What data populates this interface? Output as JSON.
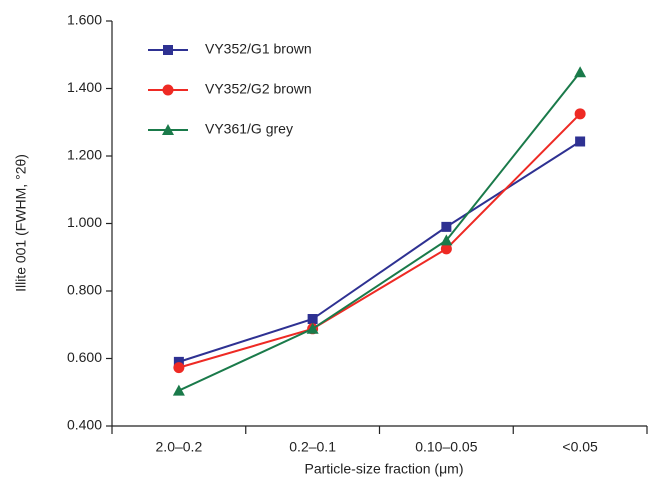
{
  "chart_data": {
    "type": "line",
    "x_label": "Particle-size fraction (μm)",
    "y_label": "Illite 001 (FWHM, °2θ)",
    "categories": [
      "2.0–0.2",
      "0.2–0.1",
      "0.10–0.05",
      "<0.05"
    ],
    "series": [
      {
        "name": "VY352/G1 brown",
        "color": "#2e3192",
        "marker": "square",
        "values": [
          0.59,
          0.717,
          0.99,
          1.243
        ]
      },
      {
        "name": "VY352/G2 brown",
        "color": "#ee2a24",
        "marker": "circle",
        "values": [
          0.573,
          0.688,
          0.925,
          1.325
        ]
      },
      {
        "name": "VY361/G grey",
        "color": "#1a7a4a",
        "marker": "triangle",
        "values": [
          0.505,
          0.688,
          0.95,
          1.448
        ]
      }
    ],
    "ylim": [
      0.4,
      1.6
    ],
    "yticks": [
      {
        "value": 0.4,
        "label": "0.400"
      },
      {
        "value": 0.6,
        "label": "0.600"
      },
      {
        "value": 0.8,
        "label": "0.800"
      },
      {
        "value": 1.0,
        "label": "1.000"
      },
      {
        "value": 1.2,
        "label": "1.200"
      },
      {
        "value": 1.4,
        "label": "1.400"
      },
      {
        "value": 1.6,
        "label": "1.600"
      }
    ],
    "legend": "top-left",
    "grid": false
  }
}
